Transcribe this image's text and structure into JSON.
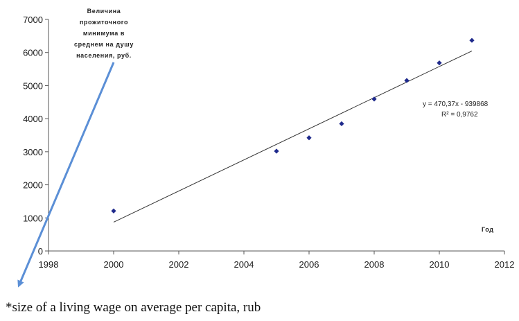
{
  "chart_data": {
    "type": "scatter",
    "xlim": [
      1998,
      2012
    ],
    "ylim": [
      0,
      7000
    ],
    "x_ticks": [
      1998,
      2000,
      2002,
      2004,
      2006,
      2008,
      2010,
      2012
    ],
    "y_ticks": [
      0,
      1000,
      2000,
      3000,
      4000,
      5000,
      6000,
      7000
    ],
    "ylabel_lines": [
      "Величина",
      "прожиточного",
      "минимума в",
      "среднем на душу",
      "населения, руб."
    ],
    "xlabel": "Год",
    "series": [
      {
        "x": [
          2000,
          2005,
          2006,
          2007,
          2008,
          2009,
          2010,
          2011
        ],
        "y": [
          1210,
          3018,
          3422,
          3847,
          4593,
          5153,
          5685,
          6367
        ],
        "color": "#1f2a8c"
      }
    ],
    "trendline": {
      "equation": "y = 470,37x - 939868",
      "r2_label": "R² = 0,9762",
      "x_from": 2000,
      "x_to": 2011,
      "slope": 470.37,
      "intercept": -939868
    }
  },
  "footnote": "*size of a living wage on average per capita, rub",
  "arrow_color": "#5b8fd6"
}
